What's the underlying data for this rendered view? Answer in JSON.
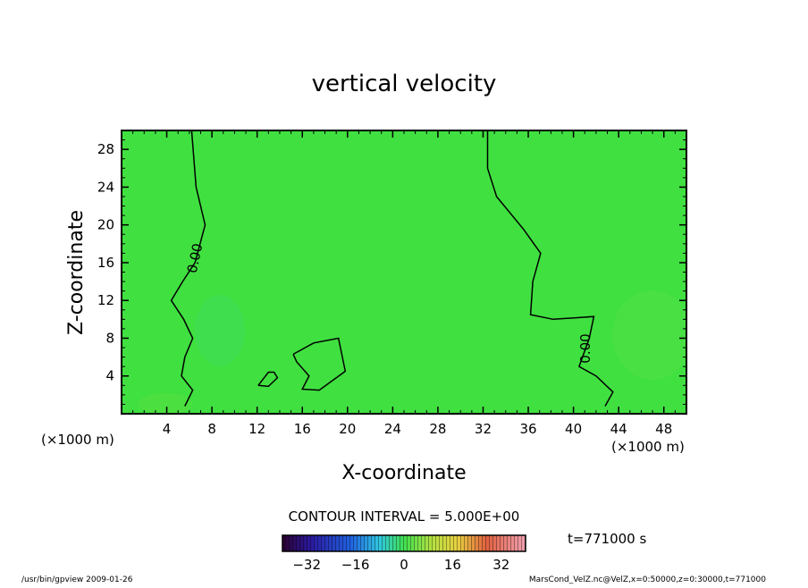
{
  "chart_data": {
    "type": "contour",
    "title": "vertical velocity",
    "xlabel": "X-coordinate",
    "ylabel": "Z-coordinate",
    "x_unit": "(×1000 m)",
    "y_unit": "(×1000 m)",
    "xlim": [
      0,
      50
    ],
    "ylim": [
      0,
      30
    ],
    "x_ticks": [
      4,
      8,
      12,
      16,
      20,
      24,
      28,
      32,
      36,
      40,
      44,
      48
    ],
    "y_ticks": [
      4,
      8,
      12,
      16,
      20,
      24,
      28
    ],
    "contour_label": "0.00",
    "contour_interval": "CONTOUR INTERVAL = 5.000E+00",
    "time_label": "t=771000 s",
    "colorbar": {
      "ticks": [
        -32,
        -16,
        0,
        16,
        32
      ],
      "range": [
        -40,
        40
      ]
    },
    "contours": [
      {
        "name": "left",
        "points": [
          [
            6.2,
            30
          ],
          [
            6.6,
            24
          ],
          [
            7.4,
            20
          ],
          [
            6.5,
            16
          ],
          [
            5.4,
            14
          ],
          [
            4.4,
            12
          ],
          [
            5.5,
            10
          ],
          [
            6.3,
            8
          ],
          [
            5.6,
            6
          ],
          [
            5.3,
            4
          ],
          [
            6.3,
            2.5
          ],
          [
            5.6,
            0.8
          ]
        ]
      },
      {
        "name": "right",
        "points": [
          [
            32.4,
            30
          ],
          [
            32.4,
            26
          ],
          [
            33.2,
            23
          ],
          [
            35.6,
            19.5
          ],
          [
            37.1,
            17
          ],
          [
            36.4,
            14
          ],
          [
            36.2,
            10.5
          ],
          [
            38.2,
            10
          ],
          [
            41.8,
            10.3
          ],
          [
            41.4,
            8
          ],
          [
            40.8,
            6
          ],
          [
            40.5,
            5
          ],
          [
            42,
            4
          ],
          [
            43.5,
            2.3
          ],
          [
            42.8,
            0.8
          ]
        ]
      },
      {
        "name": "middle-blob",
        "points": [
          [
            15.2,
            6.3
          ],
          [
            17,
            7.5
          ],
          [
            19.2,
            8
          ],
          [
            19.8,
            4.5
          ],
          [
            17.5,
            2.5
          ],
          [
            16,
            2.6
          ],
          [
            16.6,
            4
          ],
          [
            15.5,
            5.5
          ],
          [
            15.2,
            6.3
          ]
        ]
      },
      {
        "name": "small-loop",
        "points": [
          [
            12.1,
            3
          ],
          [
            13,
            4.4
          ],
          [
            13.5,
            4.4
          ],
          [
            13.8,
            3.8
          ],
          [
            13,
            2.9
          ],
          [
            12.1,
            3
          ]
        ]
      }
    ]
  },
  "footer": {
    "left": "/usr/bin/gpview   2009-01-26",
    "right": "MarsCond_VelZ.nc@VelZ,x=0:50000,z=0:30000,t=771000"
  }
}
